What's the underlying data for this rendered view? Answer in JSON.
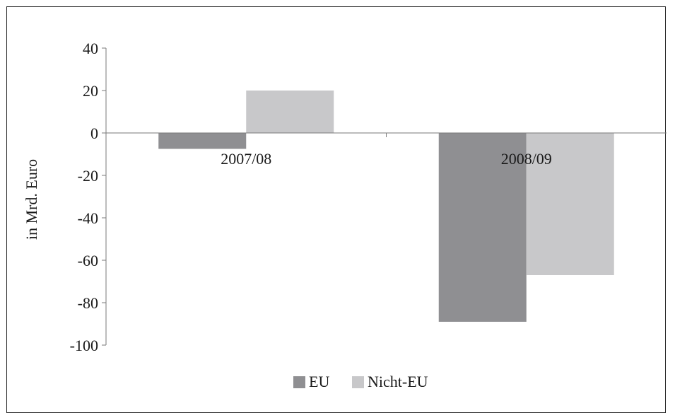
{
  "chart_data": {
    "type": "bar",
    "ylabel": "in Mrd. Euro",
    "categories": [
      "2007/08",
      "2008/09"
    ],
    "series": [
      {
        "name": "EU",
        "values": [
          -7.5,
          -89
        ],
        "color": "#8f8f92"
      },
      {
        "name": "Nicht-EU",
        "values": [
          20,
          -67
        ],
        "color": "#c8c8ca"
      }
    ],
    "ylim": [
      -100,
      40
    ],
    "yticks": [
      40,
      20,
      0,
      -20,
      -40,
      -60,
      -80,
      -100
    ],
    "legend_position": "bottom",
    "grid": false
  }
}
